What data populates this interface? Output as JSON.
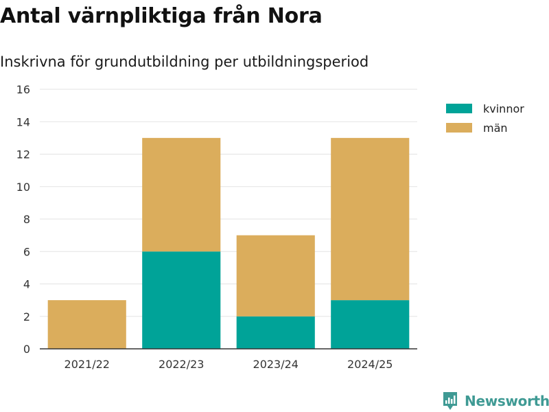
{
  "title": "Antal värnpliktiga från Nora",
  "subtitle": "Inskrivna för grundutbildning per utbildningsperiod",
  "brand": "Newsworthy",
  "chart_data": {
    "type": "bar",
    "stacked": true,
    "categories": [
      "2021/22",
      "2022/23",
      "2023/24",
      "2024/25"
    ],
    "series": [
      {
        "name": "kvinnor",
        "values": [
          0,
          6,
          2,
          3
        ],
        "color": "#00a398"
      },
      {
        "name": "män",
        "values": [
          3,
          7,
          5,
          10
        ],
        "color": "#dbad5c"
      }
    ],
    "yticks": [
      0,
      2,
      4,
      6,
      8,
      10,
      12,
      14,
      16
    ],
    "ylim": [
      0,
      16
    ],
    "grid": true,
    "legend_position": "top-right",
    "xlabel": "",
    "ylabel": ""
  }
}
